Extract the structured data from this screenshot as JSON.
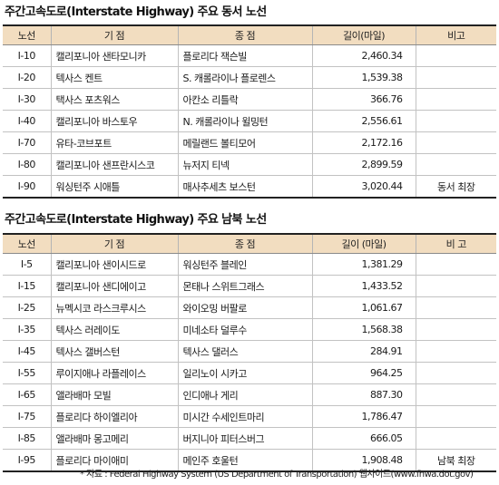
{
  "ew": {
    "title": "주간고속도로(Interstate Highway) 주요 동서 노선",
    "headers": [
      "노선",
      "기 점",
      "종 점",
      "길이(마일)",
      "비고"
    ],
    "rows": [
      {
        "route": "I-10",
        "start": "캘리포니아 샌타모니카",
        "end": "플로리다 잭슨빌",
        "length": "2,460.34",
        "note": ""
      },
      {
        "route": "I-20",
        "start": "텍사스 켄트",
        "end": "S. 캐롤라이나 플로렌스",
        "length": "1,539.38",
        "note": ""
      },
      {
        "route": "I-30",
        "start": "택사스 포츠워스",
        "end": "아칸소 리틀락",
        "length": "366.76",
        "note": ""
      },
      {
        "route": "I-40",
        "start": "캘리포니아 바스토우",
        "end": "N. 캐롤라이나 윌밍턴",
        "length": "2,556.61",
        "note": ""
      },
      {
        "route": "I-70",
        "start": "유타-코브포트",
        "end": "메릴랜드 볼티모어",
        "length": "2,172.16",
        "note": ""
      },
      {
        "route": "I-80",
        "start": "캘리포니아 샌프란시스코",
        "end": "뉴저지 티넥",
        "length": "2,899.59",
        "note": ""
      },
      {
        "route": "I-90",
        "start": "워싱턴주 시애틀",
        "end": "매사추세츠 보스턴",
        "length": "3,020.44",
        "note": "동서 최장"
      }
    ]
  },
  "ns": {
    "title": "주간고속도로(Interstate Highway) 주요 남북 노선",
    "headers": [
      "노선",
      "기 점",
      "종 점",
      "길이 (마일)",
      "비 고"
    ],
    "rows": [
      {
        "route": "I-5",
        "start": "캘리포니아 샌이시드로",
        "end": "워싱턴주 블레인",
        "length": "1,381.29",
        "note": ""
      },
      {
        "route": "I-15",
        "start": "캘리포니아 샌디에이고",
        "end": "몬태나 스위트그래스",
        "length": "1,433.52",
        "note": ""
      },
      {
        "route": "I-25",
        "start": "뉴멕시코 라스크루시스",
        "end": "와이오밍 버팔로",
        "length": "1,061.67",
        "note": ""
      },
      {
        "route": "I-35",
        "start": "텍사스 러레이도",
        "end": "미네소타 덜루수",
        "length": "1,568.38",
        "note": ""
      },
      {
        "route": "I-45",
        "start": "텍사스 갤버스턴",
        "end": "텍사스 댈러스",
        "length": "284.91",
        "note": ""
      },
      {
        "route": "I-55",
        "start": "루이지애나 라플레이스",
        "end": "일리노이 시카고",
        "length": "964.25",
        "note": ""
      },
      {
        "route": "I-65",
        "start": "앨라배마 모빌",
        "end": "인디애나 게리",
        "length": "887.30",
        "note": ""
      },
      {
        "route": "I-75",
        "start": "플로리다 하이엘리아",
        "end": "미시간 수세인트마리",
        "length": "1,786.47",
        "note": ""
      },
      {
        "route": "I-85",
        "start": "앨라배마 몽고메리",
        "end": "버지니아 피터스버그",
        "length": "666.05",
        "note": ""
      },
      {
        "route": "I-95",
        "start": "플로리다 마이애미",
        "end": "메인주 호울턴",
        "length": "1,908.48",
        "note": "남북 최장"
      }
    ]
  },
  "footnote": "* 자료 : Federal Highway System (US Department of Transportation) 웹사이트(www.fhwa.dot.gov)",
  "colors": {
    "header_bg": "#f2ddc0",
    "rule": "#222222",
    "grid": "#c2c2c2"
  }
}
